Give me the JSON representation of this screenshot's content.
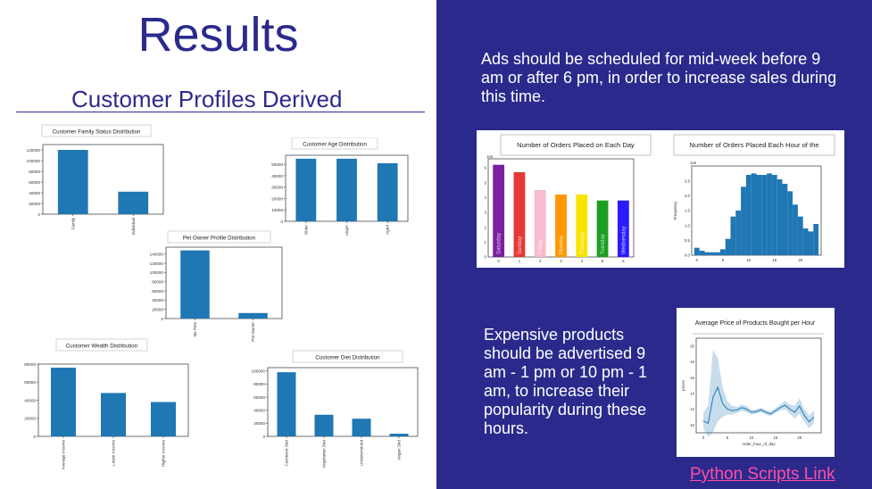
{
  "slide": {
    "title": "Results",
    "subtitle": "Customer Profiles Derived",
    "right_text_1": "Ads should be scheduled for mid-week before 9 am or after 6 pm, in order to increase sales during this time.",
    "right_text_2": "Expensive products should be advertised 9 am - 1 pm or 10 pm - 1 am, to increase their popularity during these hours.",
    "link": "Python Scripts Link"
  },
  "colors": {
    "accent": "#2b2a8c",
    "bar": "#1f77b4",
    "link": "#ff4fa3"
  },
  "chart_data": [
    {
      "type": "bar",
      "title": "Customer Family Status Distribution",
      "categories": [
        "Family",
        "Individual"
      ],
      "values": [
        120000,
        42000
      ],
      "yticks": [
        "0",
        "20000",
        "40000",
        "60000",
        "80000",
        "100000",
        "120000"
      ],
      "ylim": [
        0,
        130000
      ]
    },
    {
      "type": "bar",
      "title": "Customer Age Distribution",
      "categories": [
        "Older",
        "Younger",
        "Middle Aged"
      ],
      "values": [
        55000,
        55000,
        51000
      ],
      "yticks": [
        "0",
        "10000",
        "20000",
        "30000",
        "40000",
        "50000"
      ],
      "ylim": [
        0,
        58000
      ]
    },
    {
      "type": "bar",
      "title": "Pet Owner Profile Distribution",
      "categories": [
        "No Pets",
        "Pet Owner"
      ],
      "values": [
        148000,
        12000
      ],
      "yticks": [
        "0",
        "20000",
        "40000",
        "60000",
        "80000",
        "100000",
        "120000",
        "140000"
      ],
      "ylim": [
        0,
        155000
      ]
    },
    {
      "type": "bar",
      "title": "Customer Wealth Distribution",
      "categories": [
        "Average Income",
        "Lower Income",
        "Higher Income"
      ],
      "values": [
        76000,
        48000,
        38000
      ],
      "yticks": [
        "0",
        "20000",
        "40000",
        "60000",
        "80000"
      ],
      "ylim": [
        0,
        80000
      ]
    },
    {
      "type": "bar",
      "title": "Customer Diet Distribution",
      "categories": [
        "Carnivore Diet",
        "Vegetarian Diet",
        "Undetermined",
        "Vegan Diet"
      ],
      "values": [
        98000,
        33000,
        27000,
        4000
      ],
      "yticks": [
        "0",
        "20000",
        "40000",
        "60000",
        "80000",
        "100000"
      ],
      "ylim": [
        0,
        105000
      ]
    },
    {
      "type": "bar",
      "title": "Number of Orders Placed on Each Day",
      "categories": [
        "Saturday",
        "Sunday",
        "Friday",
        "Monday",
        "Thursday",
        "Tuesday",
        "Wednesday"
      ],
      "xticks": [
        "0",
        "1",
        "2",
        "3",
        "4",
        "5",
        "6"
      ],
      "values": [
        6.2,
        5.7,
        4.5,
        4.2,
        4.2,
        3.8,
        3.8
      ],
      "colors": [
        "#7b1fa2",
        "#e53935",
        "#f8bbd0",
        "#ff9800",
        "#f9e400",
        "#1b9e22",
        "#2a1bff"
      ],
      "yticks": [
        "0",
        "1",
        "2",
        "3",
        "4",
        "5",
        "6"
      ],
      "multiplier": "1e5",
      "ylim": [
        0,
        6.6
      ]
    },
    {
      "type": "bar",
      "title": "Number of Orders Placed Each Hour of the",
      "xlabel": "",
      "ylabel": "Frequency",
      "x": [
        0,
        1,
        2,
        3,
        4,
        5,
        6,
        7,
        8,
        9,
        10,
        11,
        12,
        13,
        14,
        15,
        16,
        17,
        18,
        19,
        20,
        21,
        22,
        23
      ],
      "values": [
        0.25,
        0.15,
        0.1,
        0.1,
        0.1,
        0.2,
        0.55,
        1.3,
        1.5,
        2.3,
        2.7,
        2.75,
        2.7,
        2.7,
        2.75,
        2.7,
        2.55,
        2.4,
        2.15,
        1.7,
        1.3,
        0.9,
        0.8,
        1.05
      ],
      "xticks": [
        "0",
        "5",
        "10",
        "15",
        "20"
      ],
      "yticks": [
        "0.0",
        "0.5",
        "1.0",
        "1.5",
        "2.0",
        "2.5"
      ],
      "multiplier": "1e6",
      "ylim": [
        0,
        3.0
      ]
    },
    {
      "type": "line",
      "title": "Average Price of Products Bought per Hour",
      "xlabel": "order_hour_of_day",
      "ylabel": "prices",
      "x": [
        0,
        1,
        2,
        3,
        4,
        5,
        6,
        7,
        8,
        9,
        10,
        11,
        12,
        13,
        14,
        15,
        16,
        17,
        18,
        19,
        20,
        21,
        22,
        23
      ],
      "y": [
        10.5,
        10.2,
        13.5,
        14.8,
        12.7,
        12.0,
        11.8,
        11.9,
        12.2,
        12.0,
        11.6,
        11.7,
        11.9,
        11.6,
        11.4,
        11.8,
        12.2,
        12.5,
        12.0,
        11.6,
        12.4,
        11.2,
        10.4,
        11.0
      ],
      "ci_low": [
        9.5,
        8.5,
        9.0,
        10.5,
        11.0,
        11.3,
        11.3,
        11.5,
        11.8,
        11.6,
        11.3,
        11.4,
        11.6,
        11.3,
        11.1,
        11.5,
        11.8,
        12.0,
        11.4,
        10.8,
        11.4,
        10.4,
        9.6,
        10.2
      ],
      "ci_high": [
        11.5,
        12.5,
        19.5,
        18.5,
        14.8,
        13.0,
        12.4,
        12.3,
        12.6,
        12.4,
        11.9,
        12.0,
        12.2,
        11.9,
        11.7,
        12.1,
        12.6,
        13.0,
        12.6,
        12.4,
        13.4,
        12.0,
        11.2,
        11.8
      ],
      "xticks": [
        "0",
        "5",
        "10",
        "15",
        "20"
      ],
      "yticks": [
        "10",
        "12",
        "14",
        "16",
        "18",
        "20"
      ],
      "ylim": [
        9,
        21
      ]
    }
  ]
}
